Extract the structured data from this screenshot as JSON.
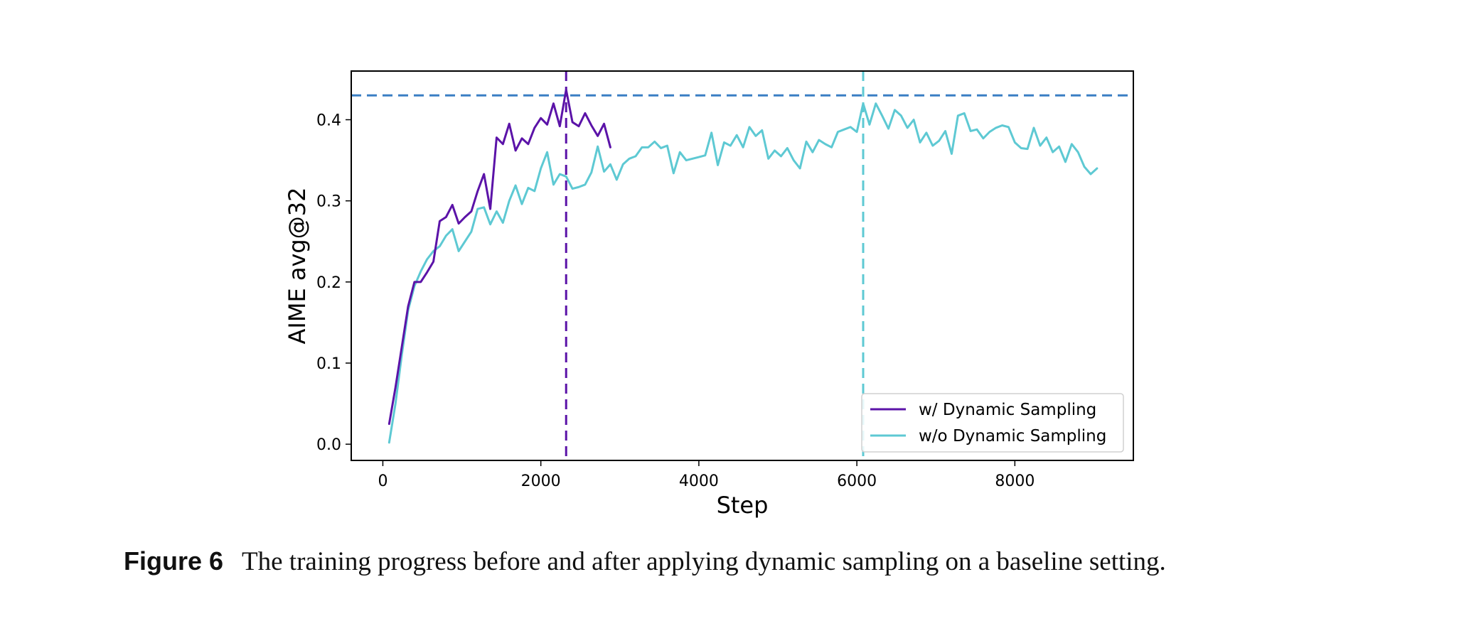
{
  "chart_data": {
    "type": "line",
    "xlabel": "Step",
    "ylabel": "AIME avg@32",
    "xlim": [
      -400,
      9500
    ],
    "ylim": [
      -0.02,
      0.46
    ],
    "xticks": [
      0,
      2000,
      4000,
      6000,
      8000
    ],
    "yticks": [
      0.0,
      0.1,
      0.2,
      0.3,
      0.4
    ],
    "xtick_labels": [
      "0",
      "2000",
      "4000",
      "6000",
      "8000"
    ],
    "ytick_labels": [
      "0.0",
      "0.1",
      "0.2",
      "0.3",
      "0.4"
    ],
    "legend_position": "lower-right",
    "reference_lines": {
      "horizontal": {
        "y": 0.43,
        "color": "#3a7fc4",
        "style": "dashed"
      },
      "vertical": [
        {
          "x": 2320,
          "color": "#5b13a8",
          "style": "dashed"
        },
        {
          "x": 6080,
          "color": "#5ec9d3",
          "style": "dashed"
        }
      ]
    },
    "series": [
      {
        "name": "w/ Dynamic Sampling",
        "color": "#5b13a8",
        "x": [
          80,
          160,
          240,
          320,
          400,
          480,
          560,
          640,
          720,
          800,
          880,
          960,
          1040,
          1120,
          1200,
          1280,
          1360,
          1440,
          1520,
          1600,
          1680,
          1760,
          1840,
          1920,
          2000,
          2080,
          2160,
          2240,
          2320,
          2400,
          2480,
          2560,
          2640,
          2720,
          2800,
          2880
        ],
        "y": [
          0.025,
          0.07,
          0.12,
          0.17,
          0.2,
          0.2,
          0.212,
          0.225,
          0.275,
          0.28,
          0.295,
          0.272,
          0.28,
          0.287,
          0.312,
          0.333,
          0.29,
          0.378,
          0.37,
          0.395,
          0.362,
          0.377,
          0.37,
          0.39,
          0.402,
          0.394,
          0.42,
          0.392,
          0.437,
          0.397,
          0.392,
          0.408,
          0.393,
          0.38,
          0.395,
          0.366
        ]
      },
      {
        "name": "w/o Dynamic Sampling",
        "color": "#5ec9d3",
        "x": [
          80,
          160,
          240,
          320,
          400,
          480,
          560,
          640,
          720,
          800,
          880,
          960,
          1040,
          1120,
          1200,
          1280,
          1360,
          1440,
          1520,
          1600,
          1680,
          1760,
          1840,
          1920,
          2000,
          2080,
          2160,
          2240,
          2320,
          2400,
          2480,
          2560,
          2640,
          2720,
          2800,
          2880,
          2960,
          3040,
          3120,
          3200,
          3280,
          3360,
          3440,
          3520,
          3600,
          3680,
          3760,
          3840,
          3920,
          4000,
          4080,
          4160,
          4240,
          4320,
          4400,
          4480,
          4560,
          4640,
          4720,
          4800,
          4880,
          4960,
          5040,
          5120,
          5200,
          5280,
          5360,
          5440,
          5520,
          5600,
          5680,
          5760,
          5840,
          5920,
          6000,
          6080,
          6160,
          6240,
          6320,
          6400,
          6480,
          6560,
          6640,
          6720,
          6800,
          6880,
          6960,
          7040,
          7120,
          7200,
          7280,
          7360,
          7440,
          7520,
          7600,
          7680,
          7760,
          7840,
          7920,
          8000,
          8080,
          8160,
          8240,
          8320,
          8400,
          8480,
          8560,
          8640,
          8720,
          8800,
          8880,
          8960,
          9040
        ],
        "y": [
          0.002,
          0.05,
          0.11,
          0.165,
          0.195,
          0.213,
          0.228,
          0.238,
          0.244,
          0.257,
          0.265,
          0.238,
          0.25,
          0.262,
          0.29,
          0.292,
          0.271,
          0.287,
          0.273,
          0.3,
          0.319,
          0.296,
          0.316,
          0.312,
          0.34,
          0.36,
          0.32,
          0.333,
          0.33,
          0.315,
          0.317,
          0.32,
          0.335,
          0.367,
          0.336,
          0.345,
          0.326,
          0.345,
          0.352,
          0.355,
          0.366,
          0.366,
          0.373,
          0.365,
          0.368,
          0.334,
          0.36,
          0.35,
          0.352,
          0.354,
          0.356,
          0.384,
          0.344,
          0.372,
          0.368,
          0.381,
          0.366,
          0.391,
          0.38,
          0.387,
          0.352,
          0.362,
          0.355,
          0.365,
          0.35,
          0.34,
          0.373,
          0.36,
          0.375,
          0.37,
          0.366,
          0.385,
          0.388,
          0.391,
          0.385,
          0.42,
          0.394,
          0.42,
          0.405,
          0.389,
          0.412,
          0.405,
          0.39,
          0.4,
          0.372,
          0.384,
          0.368,
          0.374,
          0.386,
          0.358,
          0.405,
          0.408,
          0.386,
          0.388,
          0.377,
          0.385,
          0.39,
          0.393,
          0.391,
          0.372,
          0.365,
          0.364,
          0.39,
          0.368,
          0.378,
          0.36,
          0.367,
          0.348,
          0.37,
          0.36,
          0.342,
          0.333,
          0.34
        ]
      }
    ]
  },
  "caption": {
    "label": "Figure 6",
    "text": "The training progress before and after applying dynamic sampling on a baseline setting."
  }
}
